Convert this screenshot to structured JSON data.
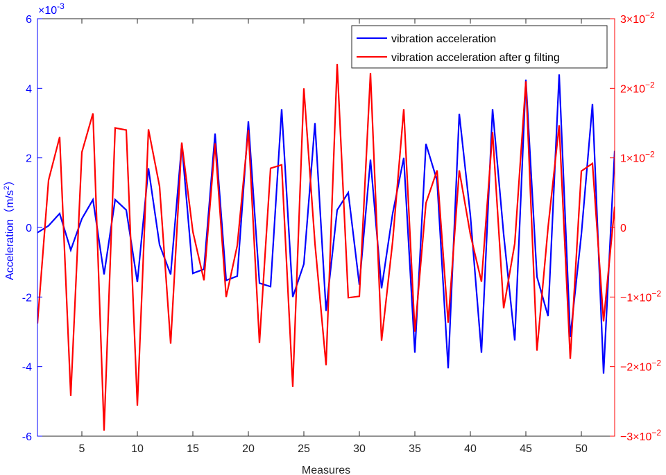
{
  "chart_data": {
    "type": "line",
    "xlabel": "Measures",
    "x_ticks": [
      5,
      10,
      15,
      20,
      25,
      30,
      35,
      40,
      45,
      50
    ],
    "xlim": [
      1,
      53
    ],
    "left_axis": {
      "ylabel_main": "Acceleration（m/s",
      "ylabel_sup": "2",
      "ylabel_close": "）",
      "multiplier_base": "×10",
      "multiplier_exp": "-3",
      "ylim": [
        -6,
        6
      ],
      "ticks": [
        -6,
        -4,
        -2,
        0,
        2,
        4,
        6
      ],
      "color": "#0000ff"
    },
    "right_axis": {
      "ylim": [
        -30,
        30
      ],
      "ticks": [
        {
          "value": -30,
          "mant": "−3",
          "base": "×10",
          "exp": "−2"
        },
        {
          "value": -20,
          "mant": "−2",
          "base": "×10",
          "exp": "−2"
        },
        {
          "value": -10,
          "mant": "−1",
          "base": "×10",
          "exp": "−2"
        },
        {
          "value": 0,
          "mant": "0",
          "base": "",
          "exp": ""
        },
        {
          "value": 10,
          "mant": "1",
          "base": "×10",
          "exp": "−2"
        },
        {
          "value": 20,
          "mant": "2",
          "base": "×10",
          "exp": "−2"
        },
        {
          "value": 30,
          "mant": "3",
          "base": "×10",
          "exp": "−2"
        }
      ],
      "color": "#ff0000"
    },
    "series": [
      {
        "name": "vibration acceleration",
        "axis": "left",
        "color": "#0000ff",
        "x": [
          1,
          2,
          3,
          4,
          5,
          6,
          7,
          8,
          9,
          10,
          11,
          12,
          13,
          14,
          15,
          16,
          17,
          18,
          19,
          20,
          21,
          22,
          23,
          24,
          25,
          26,
          27,
          28,
          29,
          30,
          31,
          32,
          33,
          34,
          35,
          36,
          37,
          38,
          39,
          40,
          41,
          42,
          43,
          44,
          45,
          46,
          47,
          48,
          49,
          50,
          51,
          52,
          53
        ],
        "values": [
          -0.15,
          0.05,
          0.4,
          -0.65,
          0.25,
          0.8,
          -1.35,
          0.8,
          0.5,
          -1.57,
          1.7,
          -0.5,
          -1.35,
          2.4,
          -1.32,
          -1.2,
          2.7,
          -1.52,
          -1.4,
          3.05,
          -1.6,
          -1.7,
          3.4,
          -2.0,
          -1.05,
          3.0,
          -2.4,
          0.5,
          1.0,
          -1.65,
          1.95,
          -1.75,
          0.4,
          2.0,
          -3.6,
          2.4,
          1.35,
          -4.05,
          3.27,
          0.35,
          -3.6,
          3.4,
          -0.2,
          -3.25,
          4.25,
          -1.42,
          -2.55,
          4.4,
          -3.15,
          -0.2,
          3.55,
          -4.2,
          2.2
        ]
      },
      {
        "name": "vibration acceleration after g filting",
        "axis": "right",
        "color": "#ff0000",
        "x": [
          1,
          2,
          3,
          4,
          5,
          6,
          7,
          8,
          9,
          10,
          11,
          12,
          13,
          14,
          15,
          16,
          17,
          18,
          19,
          20,
          21,
          22,
          23,
          24,
          25,
          26,
          27,
          28,
          29,
          30,
          31,
          32,
          33,
          34,
          35,
          36,
          37,
          38,
          39,
          40,
          41,
          42,
          43,
          44,
          45,
          46,
          47,
          48,
          49,
          50,
          51,
          52,
          53
        ],
        "values": [
          -13.8,
          6.8,
          13.0,
          -24.2,
          10.8,
          16.4,
          -29.2,
          14.3,
          14.0,
          -25.6,
          14.1,
          5.9,
          -16.7,
          12.2,
          -0.6,
          -7.6,
          12.1,
          -10.0,
          -2.6,
          14.0,
          -16.6,
          8.5,
          9.0,
          -22.9,
          20.0,
          -2.3,
          -19.8,
          23.5,
          -10.1,
          -9.9,
          22.2,
          -16.3,
          -2.0,
          17.0,
          -15.0,
          3.5,
          8.2,
          -13.7,
          8.2,
          -1.0,
          -7.8,
          13.7,
          -11.6,
          -2.3,
          21.0,
          -17.7,
          0.0,
          14.7,
          -18.9,
          8.1,
          9.2,
          -13.5,
          3.0
        ]
      }
    ]
  }
}
